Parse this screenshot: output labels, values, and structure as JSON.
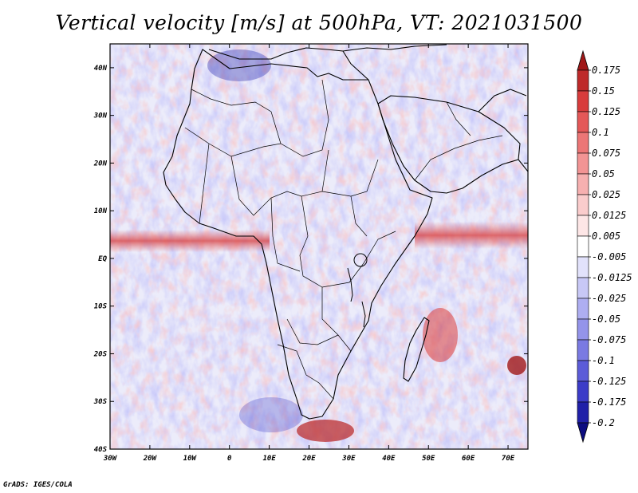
{
  "title": "Vertical velocity [m/s] at 500hPa, VT: 2021031500",
  "credit": "GrADS: IGES/COLA",
  "map": {
    "lat_ticks": [
      {
        "lat": 40,
        "label": "40N"
      },
      {
        "lat": 30,
        "label": "30N"
      },
      {
        "lat": 20,
        "label": "20N"
      },
      {
        "lat": 10,
        "label": "10N"
      },
      {
        "lat": 0,
        "label": "EQ"
      },
      {
        "lat": -10,
        "label": "10S"
      },
      {
        "lat": -20,
        "label": "20S"
      },
      {
        "lat": -30,
        "label": "30S"
      },
      {
        "lat": -40,
        "label": "40S"
      }
    ],
    "lon_ticks": [
      {
        "lon": -30,
        "label": "30W"
      },
      {
        "lon": -20,
        "label": "20W"
      },
      {
        "lon": -10,
        "label": "10W"
      },
      {
        "lon": 0,
        "label": "0"
      },
      {
        "lon": 10,
        "label": "10E"
      },
      {
        "lon": 20,
        "label": "20E"
      },
      {
        "lon": 30,
        "label": "30E"
      },
      {
        "lon": 40,
        "label": "40E"
      },
      {
        "lon": 50,
        "label": "50E"
      },
      {
        "lon": 60,
        "label": "60E"
      },
      {
        "lon": 70,
        "label": "70E"
      }
    ],
    "lat_range": [
      -40,
      45
    ],
    "lon_range": [
      -30,
      75
    ]
  },
  "colorbar": {
    "levels": [
      "0.175",
      "0.15",
      "0.125",
      "0.1",
      "0.075",
      "0.05",
      "0.025",
      "0.0125",
      "0.005",
      "-0.005",
      "-0.0125",
      "-0.025",
      "-0.05",
      "-0.075",
      "-0.1",
      "-0.125",
      "-0.175",
      "-0.2"
    ],
    "colors": [
      "#a01818",
      "#be2a2a",
      "#d83c3c",
      "#e45858",
      "#ec7676",
      "#f29494",
      "#f6b0b0",
      "#facccc",
      "#fde6e6",
      "#ffffff",
      "#e2e2fb",
      "#c8c8f6",
      "#aeaef1",
      "#9494ea",
      "#7a7ae2",
      "#5c5cd8",
      "#3c3cc8",
      "#2020a8",
      "#0c0c80"
    ]
  }
}
